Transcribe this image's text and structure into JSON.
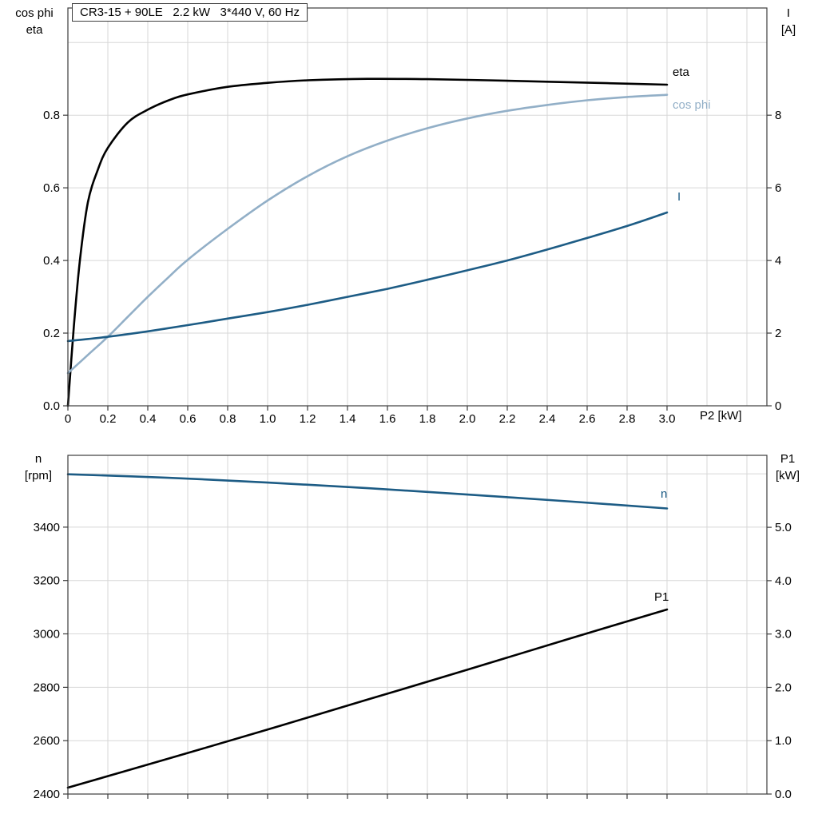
{
  "header": {
    "title_box": "CR3-15 + 90LE   2.2 kW   3*440 V, 60 Hz"
  },
  "axis_titles": {
    "top_left_line1": "cos phi",
    "top_left_line2": "eta",
    "top_right_line1": "I",
    "top_right_line2": "[A]",
    "x_axis": "P2 [kW]",
    "bottom_left_line1": "n",
    "bottom_left_line2": "[rpm]",
    "bottom_right_line1": "P1",
    "bottom_right_line2": "[kW]"
  },
  "curve_labels": {
    "eta": "eta",
    "cos_phi": "cos phi",
    "current": "I",
    "n": "n",
    "p1": "P1"
  },
  "colors": {
    "black": "#000000",
    "dark_blue": "#1d5c85",
    "light_blue": "#92afc7",
    "grid": "#d7d7d7",
    "frame": "#3c3c3c"
  },
  "chart_data": [
    {
      "type": "line",
      "title": "CR3-15 + 90LE   2.2 kW   3*440 V, 60 Hz",
      "xlabel": "P2 [kW]",
      "ylabel_left": "cos phi / eta",
      "ylabel_right": "I [A]",
      "xlim": [
        0,
        3.5
      ],
      "ylim_left": [
        0,
        1.095
      ],
      "ylim_right": [
        0,
        10.95
      ],
      "x_ticks": {
        "values": [
          0,
          0.2,
          0.4,
          0.6,
          0.8,
          1.0,
          1.2,
          1.4,
          1.6,
          1.8,
          2.0,
          2.2,
          2.4,
          2.6,
          2.8,
          3.0
        ],
        "labels": [
          "0",
          "0.2",
          "0.4",
          "0.6",
          "0.8",
          "1.0",
          "1.2",
          "1.4",
          "1.6",
          "1.8",
          "2.0",
          "2.2",
          "2.4",
          "2.6",
          "2.8",
          "3.0"
        ]
      },
      "y_ticks_left": {
        "values": [
          0,
          0.2,
          0.4,
          0.6,
          0.8
        ],
        "labels": [
          "0.0",
          "0.2",
          "0.4",
          "0.6",
          "0.8"
        ]
      },
      "y_ticks_right": {
        "values": [
          0,
          2,
          4,
          6,
          8
        ],
        "labels": [
          "0",
          "2",
          "4",
          "6",
          "8"
        ]
      },
      "grid_x": [
        0.2,
        0.4,
        0.6,
        0.8,
        1.0,
        1.2,
        1.4,
        1.6,
        1.8,
        2.0,
        2.2,
        2.4,
        2.6,
        2.8,
        3.0,
        3.2,
        3.4
      ],
      "grid_y_left": [
        0.2,
        0.4,
        0.6,
        0.8,
        1.0
      ],
      "series": [
        {
          "name": "eta",
          "axis": "left",
          "color": "#000000",
          "x": [
            0,
            0.03,
            0.06,
            0.1,
            0.15,
            0.2,
            0.3,
            0.4,
            0.5,
            0.6,
            0.8,
            1.0,
            1.2,
            1.5,
            1.8,
            2.1,
            2.4,
            2.7,
            3.0
          ],
          "y": [
            0,
            0.22,
            0.4,
            0.56,
            0.65,
            0.71,
            0.78,
            0.815,
            0.84,
            0.857,
            0.878,
            0.889,
            0.896,
            0.9,
            0.899,
            0.896,
            0.892,
            0.888,
            0.884
          ]
        },
        {
          "name": "cos phi",
          "axis": "left",
          "color": "#92afc7",
          "x": [
            0,
            0.1,
            0.2,
            0.3,
            0.4,
            0.5,
            0.6,
            0.8,
            1.0,
            1.2,
            1.4,
            1.6,
            1.8,
            2.0,
            2.2,
            2.4,
            2.6,
            2.8,
            3.0
          ],
          "y": [
            0.09,
            0.14,
            0.19,
            0.245,
            0.3,
            0.352,
            0.402,
            0.487,
            0.565,
            0.632,
            0.687,
            0.73,
            0.764,
            0.791,
            0.812,
            0.828,
            0.841,
            0.85,
            0.856
          ]
        },
        {
          "name": "I",
          "axis": "right",
          "color": "#1d5c85",
          "x": [
            0,
            0.2,
            0.4,
            0.6,
            0.8,
            1.0,
            1.2,
            1.4,
            1.6,
            1.8,
            2.0,
            2.2,
            2.4,
            2.6,
            2.8,
            3.0
          ],
          "y": [
            1.78,
            1.9,
            2.05,
            2.22,
            2.4,
            2.58,
            2.78,
            3.0,
            3.22,
            3.47,
            3.73,
            4.0,
            4.3,
            4.62,
            4.95,
            5.32
          ]
        }
      ]
    },
    {
      "type": "line",
      "title": "",
      "xlabel": "",
      "ylabel_left": "n [rpm]",
      "ylabel_right": "P1 [kW]",
      "xlim": [
        0,
        3.5
      ],
      "ylim_left": [
        2400,
        3669
      ],
      "ylim_right": [
        0,
        6.35
      ],
      "x_ticks": {
        "values": [
          0,
          0.2,
          0.4,
          0.6,
          0.8,
          1.0,
          1.2,
          1.4,
          1.6,
          1.8,
          2.0,
          2.2,
          2.4,
          2.6,
          2.8,
          3.0
        ],
        "labels": []
      },
      "y_ticks_left": {
        "values": [
          2400,
          2600,
          2800,
          3000,
          3200,
          3400
        ],
        "labels": [
          "2400",
          "2600",
          "2800",
          "3000",
          "3200",
          "3400"
        ]
      },
      "y_ticks_right": {
        "values": [
          0,
          1,
          2,
          3,
          4,
          5
        ],
        "labels": [
          "0.0",
          "1.0",
          "2.0",
          "3.0",
          "4.0",
          "5.0"
        ]
      },
      "grid_x": [
        0.2,
        0.4,
        0.6,
        0.8,
        1.0,
        1.2,
        1.4,
        1.6,
        1.8,
        2.0,
        2.2,
        2.4,
        2.6,
        2.8,
        3.0,
        3.2,
        3.4
      ],
      "grid_y_left": [
        2600,
        2800,
        3000,
        3200,
        3400,
        3600
      ],
      "series": [
        {
          "name": "n",
          "axis": "left",
          "color": "#1d5c85",
          "x": [
            0,
            0.5,
            1.0,
            1.5,
            2.0,
            2.5,
            3.0
          ],
          "y": [
            3598,
            3585,
            3567,
            3546,
            3522,
            3497,
            3470
          ]
        },
        {
          "name": "P1",
          "axis": "right",
          "color": "#000000",
          "x": [
            0,
            0.5,
            1.0,
            1.5,
            2.0,
            2.5,
            3.0
          ],
          "y": [
            0.12,
            0.66,
            1.21,
            1.77,
            2.33,
            2.9,
            3.46
          ]
        }
      ]
    }
  ]
}
